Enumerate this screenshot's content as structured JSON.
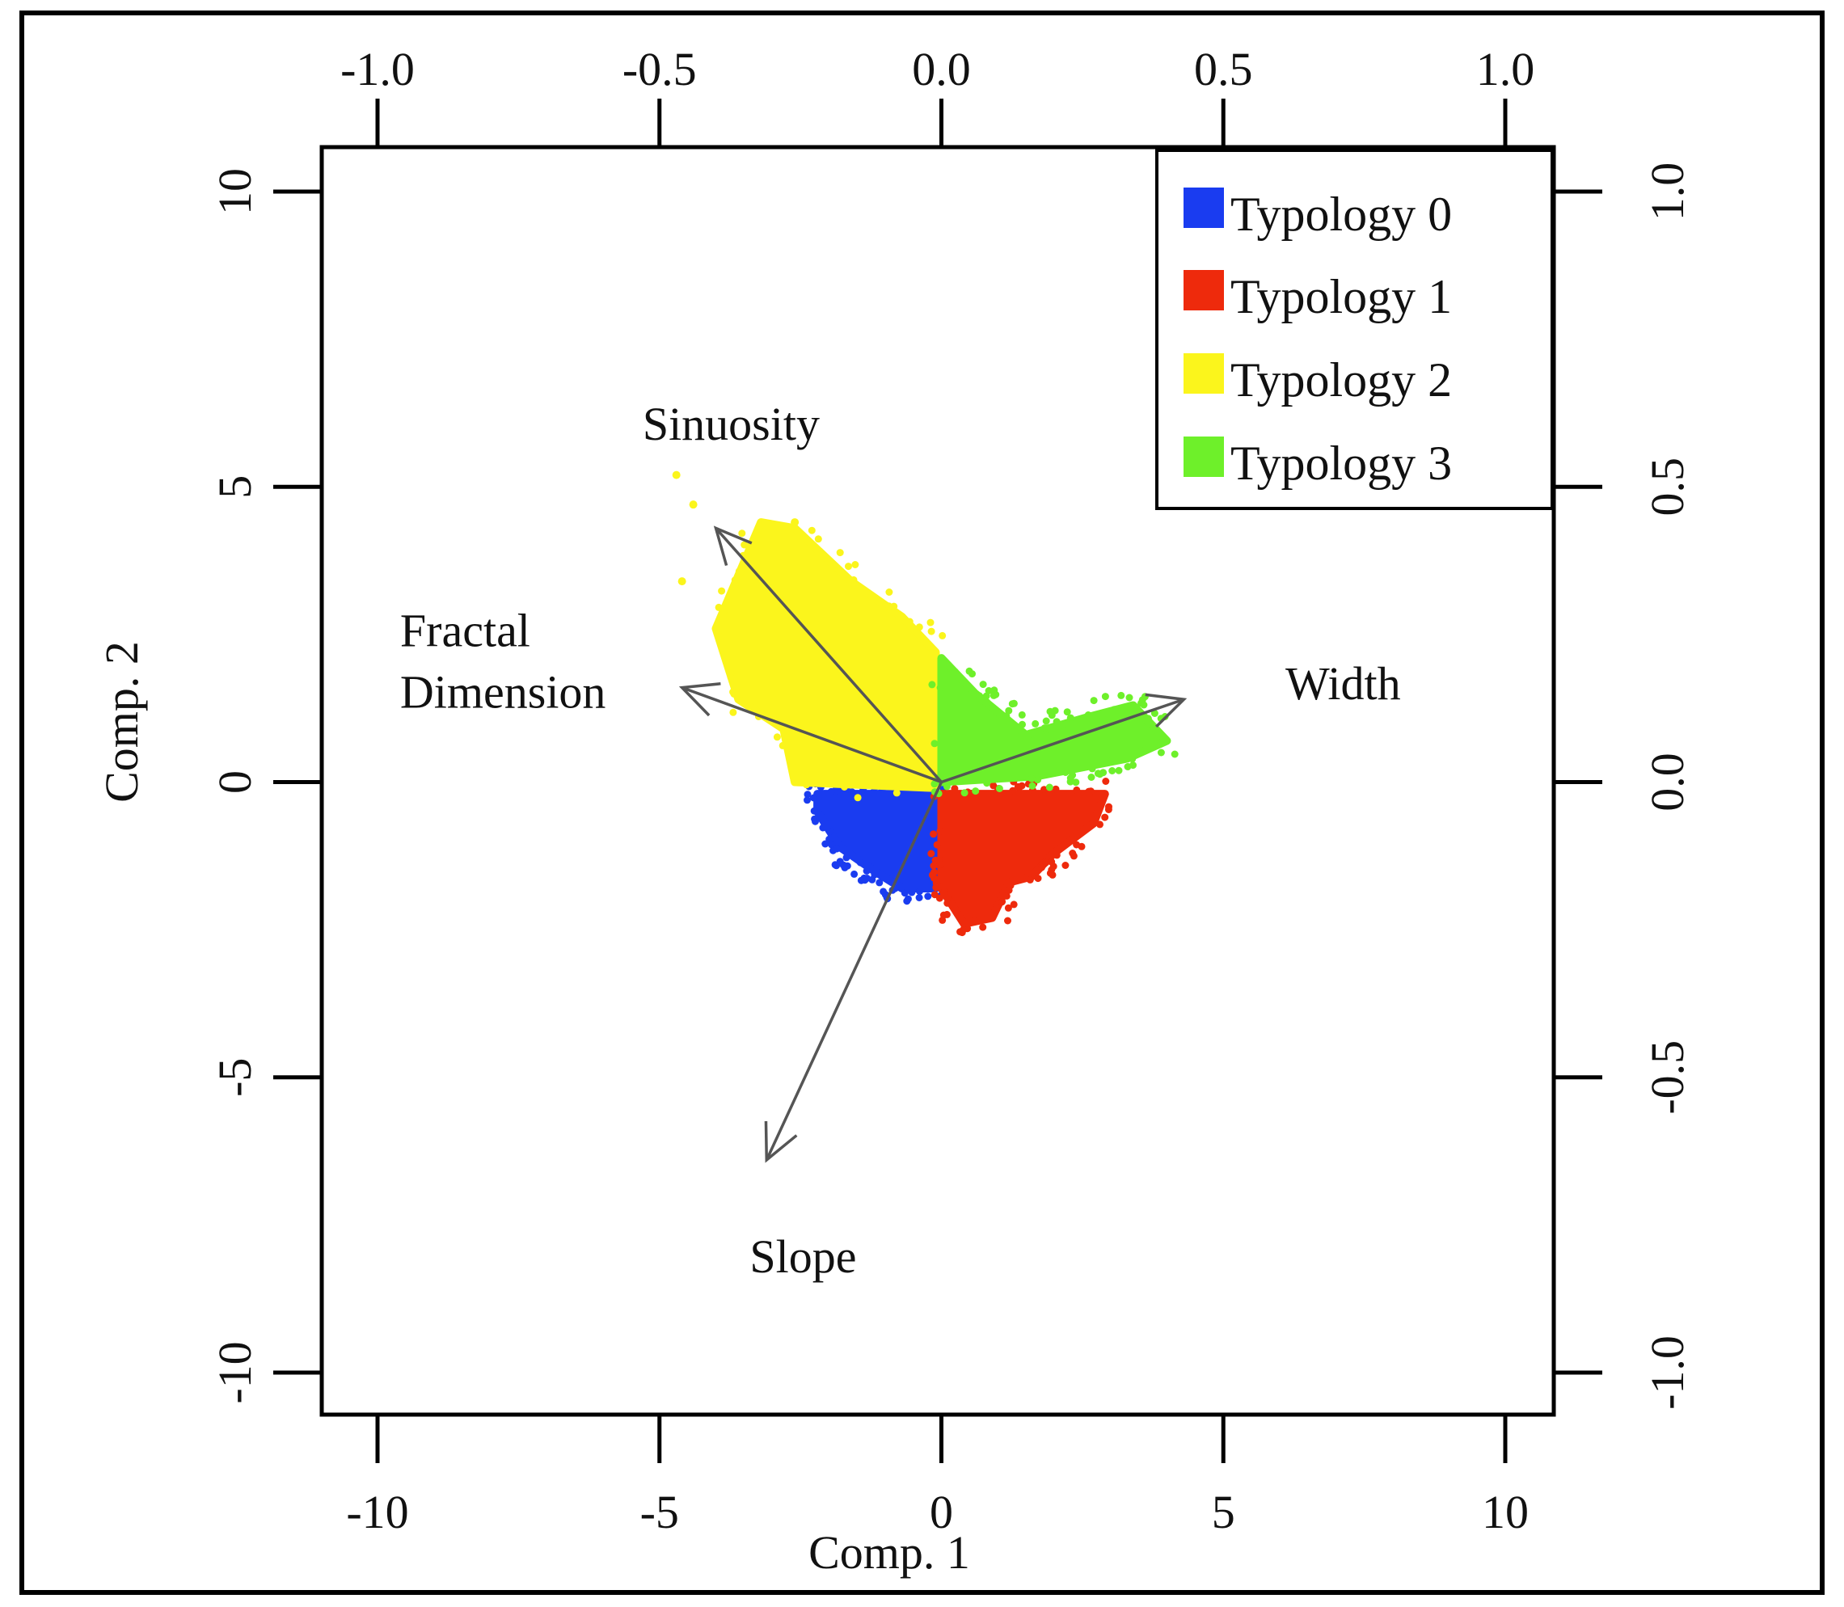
{
  "chart_data": {
    "type": "scatter",
    "subtype": "pca-biplot",
    "xlabel": "Comp. 1",
    "ylabel": "Comp. 2",
    "xlim": [
      -10,
      10
    ],
    "ylim": [
      -10,
      10
    ],
    "x_ticks": [
      "-10",
      "-5",
      "0",
      "5",
      "10"
    ],
    "y_ticks": [
      "-10",
      "-5",
      "0",
      "5",
      "10"
    ],
    "x_ticks_top": [
      "-1.0",
      "-0.5",
      "0.0",
      "0.5",
      "1.0"
    ],
    "y_ticks_right": [
      "-1.0",
      "-0.5",
      "0.0",
      "0.5",
      "1.0"
    ],
    "loadings_range": [
      -1,
      1
    ],
    "legend_position": "top-right",
    "legend": [
      {
        "name": "Typology 0",
        "color": "#1a3cf0"
      },
      {
        "name": "Typology 1",
        "color": "#ee2a0c"
      },
      {
        "name": "Typology 2",
        "color": "#fbf51c"
      },
      {
        "name": "Typology 3",
        "color": "#6ef02a"
      }
    ],
    "point_clouds": [
      {
        "series": "Typology 0",
        "polygon": [
          [
            -2.2,
            -0.2
          ],
          [
            -0.1,
            -0.2
          ],
          [
            -0.1,
            -1.8
          ],
          [
            -0.7,
            -1.8
          ],
          [
            -1.2,
            -1.5
          ],
          [
            -1.8,
            -1.1
          ],
          [
            -2.2,
            -0.5
          ]
        ]
      },
      {
        "series": "Typology 1",
        "polygon": [
          [
            0,
            -0.2
          ],
          [
            2.9,
            -0.2
          ],
          [
            2.7,
            -0.7
          ],
          [
            2.0,
            -1.2
          ],
          [
            1.6,
            -1.6
          ],
          [
            1.2,
            -1.7
          ],
          [
            0.9,
            -2.3
          ],
          [
            0.4,
            -2.4
          ],
          [
            0,
            -1.8
          ]
        ]
      },
      {
        "series": "Typology 2",
        "polygon": [
          [
            -3.2,
            4.4
          ],
          [
            -2.6,
            4.3
          ],
          [
            -1.6,
            3.4
          ],
          [
            -0.7,
            2.8
          ],
          [
            -0.1,
            2.2
          ],
          [
            -0.1,
            -0.1
          ],
          [
            -2.6,
            0
          ],
          [
            -2.8,
            0.9
          ],
          [
            -3.6,
            1.4
          ],
          [
            -4.0,
            2.6
          ]
        ]
      },
      {
        "series": "Typology 3",
        "polygon": [
          [
            0,
            2.1
          ],
          [
            0.6,
            1.5
          ],
          [
            1.5,
            0.8
          ],
          [
            2.6,
            1.1
          ],
          [
            3.4,
            1.3
          ],
          [
            4.0,
            0.7
          ],
          [
            3.3,
            0.4
          ],
          [
            1.7,
            0.1
          ],
          [
            0,
            0
          ]
        ]
      }
    ],
    "outlier_points": [
      {
        "series": "Typology 2",
        "x": -4.7,
        "y": 5.2
      },
      {
        "series": "Typology 2",
        "x": -4.4,
        "y": 4.7
      },
      {
        "series": "Typology 2",
        "x": -4.6,
        "y": 3.4
      },
      {
        "series": "Typology 2",
        "x": -2.6,
        "y": 4.4
      }
    ],
    "loadings": [
      {
        "name": "Sinuosity",
        "x": -0.4,
        "y": 0.43
      },
      {
        "name": "Fractal Dimension",
        "x": -0.46,
        "y": 0.16
      },
      {
        "name": "Width",
        "x": 0.43,
        "y": 0.14
      },
      {
        "name": "Slope",
        "x": -0.31,
        "y": -0.64
      }
    ],
    "loading_labels": [
      {
        "lines": [
          "Sinuosity"
        ],
        "x": -0.53,
        "y": 0.58
      },
      {
        "lines": [
          "Fractal",
          "Dimension"
        ],
        "x": -0.96,
        "y": 0.23
      },
      {
        "lines": [
          "Width"
        ],
        "x": 0.61,
        "y": 0.14
      },
      {
        "lines": [
          "Slope"
        ],
        "x": -0.34,
        "y": -0.83
      }
    ]
  }
}
